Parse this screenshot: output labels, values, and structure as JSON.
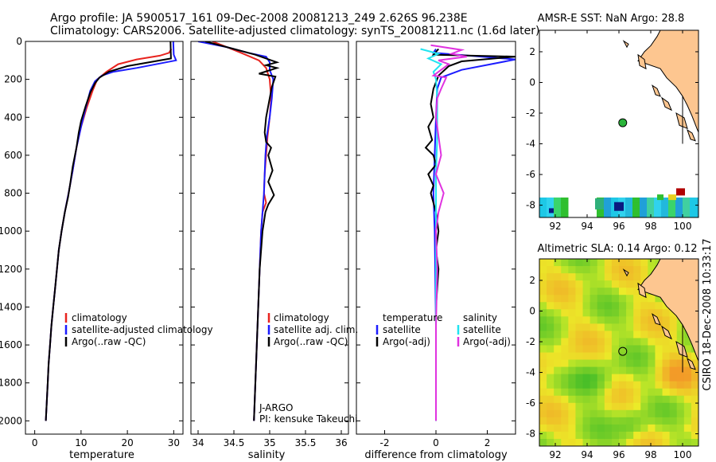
{
  "header": {
    "line1": "Argo profile: JA 5900517_161 09-Dec-2008 20081213_249 2.626S 96.238E",
    "line2": "Climatology: CARS2006. Satellite-adjusted climatology: synTS_20081211.nc (1.6d later)"
  },
  "side_label": "CSIRO 18-Dec-2008 10:33:17",
  "colors": {
    "clim": "#e8231e",
    "sat": "#1c1cff",
    "argo": "#000000",
    "cyan": "#20e4f0",
    "magenta": "#e033e0",
    "land": "#fdc690",
    "marker": "#2ab43a"
  },
  "chart_data": [
    {
      "id": "temperature",
      "type": "line",
      "xlabel": "temperature",
      "xlim": [
        -2,
        32
      ],
      "xticks": [
        0,
        10,
        20,
        30
      ],
      "ylim": [
        0,
        2070
      ],
      "yticks": [
        0,
        200,
        400,
        600,
        800,
        1000,
        1200,
        1400,
        1600,
        1800,
        2000
      ],
      "legend": [
        "climatology",
        "satellite-adjusted climatology",
        "Argo(..raw -QC)"
      ],
      "series": [
        {
          "key": "clim",
          "values": [
            [
              29.5,
              40
            ],
            [
              29,
              60
            ],
            [
              27,
              75
            ],
            [
              22,
              95
            ],
            [
              18,
              120
            ],
            [
              15.5,
              160
            ],
            [
              13.5,
              200
            ],
            [
              12.5,
              260
            ],
            [
              11.2,
              350
            ],
            [
              10,
              450
            ],
            [
              9,
              560
            ],
            [
              8.2,
              680
            ],
            [
              7.3,
              800
            ],
            [
              6.5,
              900
            ],
            [
              5.8,
              1000
            ],
            [
              5.2,
              1100
            ],
            [
              4.8,
              1200
            ],
            [
              4.4,
              1300
            ],
            [
              4,
              1400
            ],
            [
              3.6,
              1500
            ],
            [
              3.3,
              1600
            ],
            [
              3,
              1700
            ],
            [
              2.8,
              1800
            ],
            [
              2.6,
              1900
            ],
            [
              2.4,
              2000
            ]
          ]
        },
        {
          "key": "sat",
          "values": [
            [
              29.9,
              0
            ],
            [
              30,
              70
            ],
            [
              30.5,
              100
            ],
            [
              22,
              140
            ],
            [
              17,
              160
            ],
            [
              14.5,
              180
            ],
            [
              13,
              210
            ],
            [
              12,
              260
            ],
            [
              11,
              350
            ],
            [
              10,
              450
            ],
            [
              9,
              560
            ],
            [
              8.2,
              680
            ],
            [
              7.3,
              800
            ],
            [
              6.5,
              900
            ],
            [
              5.8,
              1000
            ],
            [
              5.2,
              1100
            ],
            [
              4.8,
              1200
            ],
            [
              4.4,
              1300
            ],
            [
              4,
              1400
            ],
            [
              3.6,
              1500
            ],
            [
              3.3,
              1600
            ],
            [
              3,
              1700
            ],
            [
              2.8,
              1800
            ],
            [
              2.6,
              1900
            ],
            [
              2.4,
              2000
            ]
          ]
        },
        {
          "key": "argo",
          "values": [
            [
              29.3,
              0
            ],
            [
              29.4,
              90
            ],
            [
              20,
              130
            ],
            [
              16,
              160
            ],
            [
              14,
              190
            ],
            [
              13,
              220
            ],
            [
              12,
              270
            ],
            [
              11,
              340
            ],
            [
              10,
              420
            ],
            [
              9.5,
              480
            ],
            [
              9,
              560
            ],
            [
              8.2,
              660
            ],
            [
              7.6,
              760
            ],
            [
              7.2,
              820
            ],
            [
              6.5,
              900
            ],
            [
              5.8,
              1000
            ],
            [
              5.2,
              1100
            ],
            [
              4.8,
              1200
            ],
            [
              4.4,
              1300
            ],
            [
              4,
              1400
            ],
            [
              3.6,
              1500
            ],
            [
              3.3,
              1600
            ],
            [
              3,
              1700
            ],
            [
              2.8,
              1800
            ],
            [
              2.6,
              1900
            ],
            [
              2.4,
              2000
            ]
          ]
        }
      ]
    },
    {
      "id": "salinity",
      "type": "line",
      "xlabel": "salinity",
      "xlim": [
        33.9,
        36.1
      ],
      "xticks": [
        34,
        34.5,
        35,
        35.5,
        36
      ],
      "xtick_labels": [
        "34",
        "34.5",
        "35",
        "35.5",
        "36"
      ],
      "ylim": [
        0,
        2070
      ],
      "legend": [
        "climatology",
        "satellite adj. clim.",
        "Argo(..raw -QC)"
      ],
      "annotation": [
        "J-ARGO",
        "PI: kensuke Takeuchi"
      ],
      "series": [
        {
          "key": "clim",
          "values": [
            [
              34.2,
              0
            ],
            [
              34.4,
              30
            ],
            [
              34.6,
              60
            ],
            [
              34.85,
              100
            ],
            [
              34.95,
              140
            ],
            [
              35.0,
              200
            ],
            [
              35.02,
              300
            ],
            [
              35.0,
              400
            ],
            [
              34.97,
              500
            ],
            [
              34.95,
              600
            ],
            [
              34.93,
              700
            ],
            [
              34.92,
              800
            ],
            [
              34.95,
              850
            ],
            [
              34.9,
              900
            ],
            [
              34.88,
              1000
            ],
            [
              34.86,
              1200
            ],
            [
              34.84,
              1400
            ],
            [
              34.82,
              1600
            ],
            [
              34.8,
              1800
            ],
            [
              34.78,
              2000
            ]
          ]
        },
        {
          "key": "sat",
          "values": [
            [
              34.0,
              0
            ],
            [
              34.4,
              30
            ],
            [
              34.7,
              60
            ],
            [
              34.95,
              80
            ],
            [
              35.0,
              110
            ],
            [
              35.0,
              150
            ],
            [
              35.05,
              200
            ],
            [
              35.03,
              300
            ],
            [
              35.0,
              400
            ],
            [
              34.96,
              500
            ],
            [
              34.94,
              600
            ],
            [
              34.93,
              700
            ],
            [
              34.92,
              800
            ],
            [
              34.9,
              900
            ],
            [
              34.88,
              1000
            ],
            [
              34.86,
              1200
            ],
            [
              34.84,
              1400
            ],
            [
              34.82,
              1600
            ],
            [
              34.8,
              1800
            ],
            [
              34.78,
              2000
            ]
          ]
        },
        {
          "key": "argo",
          "values": [
            [
              34.1,
              0
            ],
            [
              34.5,
              40
            ],
            [
              34.8,
              70
            ],
            [
              35.1,
              110
            ],
            [
              34.95,
              125
            ],
            [
              35.1,
              140
            ],
            [
              34.85,
              170
            ],
            [
              35.08,
              185
            ],
            [
              35.03,
              240
            ],
            [
              35.0,
              300
            ],
            [
              34.95,
              400
            ],
            [
              34.93,
              480
            ],
            [
              34.95,
              530
            ],
            [
              35.02,
              560
            ],
            [
              34.98,
              600
            ],
            [
              35.04,
              680
            ],
            [
              34.98,
              740
            ],
            [
              35.06,
              810
            ],
            [
              34.98,
              860
            ],
            [
              34.94,
              900
            ],
            [
              34.9,
              1000
            ],
            [
              34.86,
              1200
            ],
            [
              34.84,
              1400
            ],
            [
              34.82,
              1600
            ],
            [
              34.8,
              1800
            ],
            [
              34.78,
              2000
            ]
          ]
        }
      ]
    },
    {
      "id": "difference",
      "type": "line",
      "xlabel": "difference from climatology",
      "xlim": [
        -3.1,
        3.1
      ],
      "xticks": [
        -2,
        0,
        2
      ],
      "ylim": [
        0,
        2070
      ],
      "legend_left": [
        "temperature",
        "satellite",
        "Argo(-adj)"
      ],
      "legend_right": [
        "salinity",
        "satellite",
        "Argo(-adj)"
      ],
      "series": [
        {
          "key": "sat",
          "values": [
            [
              0,
              40
            ],
            [
              -0.1,
              60
            ],
            [
              3.1,
              95
            ],
            [
              1,
              150
            ],
            [
              0.2,
              190
            ],
            [
              0.05,
              250
            ],
            [
              0,
              400
            ],
            [
              -0.05,
              600
            ],
            [
              -0.1,
              800
            ],
            [
              -0.05,
              1000
            ],
            [
              0,
              1500
            ],
            [
              0,
              2000
            ]
          ]
        },
        {
          "key": "argo",
          "values": [
            [
              0.1,
              40
            ],
            [
              -0.1,
              70
            ],
            [
              3.1,
              80
            ],
            [
              1,
              105
            ],
            [
              0.5,
              130
            ],
            [
              0.1,
              180
            ],
            [
              -0.1,
              250
            ],
            [
              -0.2,
              330
            ],
            [
              -0.1,
              400
            ],
            [
              -0.3,
              450
            ],
            [
              -0.15,
              520
            ],
            [
              -0.4,
              560
            ],
            [
              -0.1,
              600
            ],
            [
              0,
              650
            ],
            [
              -0.3,
              700
            ],
            [
              -0.1,
              760
            ],
            [
              -0.2,
              800
            ],
            [
              0,
              900
            ],
            [
              0.1,
              1000
            ],
            [
              0,
              1100
            ],
            [
              0.1,
              1200
            ],
            [
              0,
              1400
            ],
            [
              0,
              1600
            ],
            [
              0,
              2000
            ]
          ]
        },
        {
          "key": "cyan",
          "values": [
            [
              -0.6,
              40
            ],
            [
              0.1,
              65
            ],
            [
              -0.3,
              90
            ],
            [
              0.2,
              120
            ],
            [
              -0.1,
              160
            ],
            [
              0,
              200
            ],
            [
              0.05,
              300
            ],
            [
              0.05,
              500
            ],
            [
              0,
              700
            ],
            [
              0,
              900
            ],
            [
              0,
              1200
            ],
            [
              0,
              1500
            ],
            [
              0,
              2000
            ]
          ]
        },
        {
          "key": "magenta",
          "values": [
            [
              -0.2,
              20
            ],
            [
              1.0,
              45
            ],
            [
              0.6,
              65
            ],
            [
              1.2,
              80
            ],
            [
              0.1,
              100
            ],
            [
              0.5,
              120
            ],
            [
              0.2,
              150
            ],
            [
              -0.1,
              180
            ],
            [
              0.4,
              190
            ],
            [
              0.2,
              250
            ],
            [
              0.05,
              300
            ],
            [
              0,
              400
            ],
            [
              0.1,
              500
            ],
            [
              0.2,
              600
            ],
            [
              0,
              700
            ],
            [
              0.3,
              800
            ],
            [
              0.1,
              900
            ],
            [
              0,
              1000
            ],
            [
              0.05,
              1200
            ],
            [
              0,
              1500
            ],
            [
              0,
              2000
            ]
          ]
        }
      ]
    },
    {
      "id": "sst_map",
      "type": "heatmap",
      "title": "AMSR-E SST: NaN Argo: 28.8",
      "xlim": [
        91,
        101
      ],
      "ylim": [
        -8.8,
        3.4
      ],
      "xticks": [
        92,
        94,
        96,
        98,
        100
      ],
      "yticks": [
        2,
        0,
        -2,
        -4,
        -6,
        -8
      ],
      "xtick_labels": [
        "92",
        "94",
        "96",
        "98",
        "100"
      ],
      "ytick_labels": [
        "2",
        "0",
        "-2",
        "-4",
        "-6",
        "-8"
      ],
      "marker": {
        "lon": 96.238,
        "lat": -2.626,
        "filled": true
      }
    },
    {
      "id": "sla_map",
      "type": "heatmap",
      "title": "Altimetric SLA: 0.14 Argo: 0.12",
      "xlim": [
        91,
        101
      ],
      "ylim": [
        -8.8,
        3.4
      ],
      "xticks": [
        92,
        94,
        96,
        98,
        100
      ],
      "yticks": [
        2,
        0,
        -2,
        -4,
        -6,
        -8
      ],
      "xtick_labels": [
        "92",
        "94",
        "96",
        "98",
        "100"
      ],
      "ytick_labels": [
        "2",
        "0",
        "-2",
        "-4",
        "-6",
        "-8"
      ],
      "marker": {
        "lon": 96.238,
        "lat": -2.626,
        "filled": false
      }
    }
  ]
}
